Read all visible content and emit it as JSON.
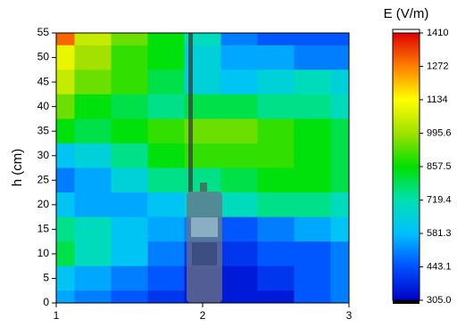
{
  "chart_data": {
    "type": "contour",
    "y_label": "h (cm)",
    "colorbar_title": "E (V/m)",
    "x": [
      1,
      1.25,
      1.5,
      1.75,
      2,
      2.25,
      2.5,
      2.75,
      3
    ],
    "y": [
      55,
      50,
      45,
      40,
      35,
      30,
      25,
      20,
      15,
      10,
      5,
      0
    ],
    "z": [
      [
        1300,
        1050,
        950,
        850,
        700,
        500,
        450,
        450,
        450
      ],
      [
        1100,
        1000,
        900,
        850,
        650,
        550,
        550,
        500,
        500
      ],
      [
        1050,
        950,
        900,
        800,
        650,
        600,
        650,
        700,
        650
      ],
      [
        950,
        850,
        800,
        750,
        800,
        800,
        750,
        750,
        700
      ],
      [
        850,
        800,
        850,
        900,
        950,
        950,
        900,
        850,
        800
      ],
      [
        600,
        650,
        750,
        850,
        900,
        900,
        900,
        850,
        800
      ],
      [
        500,
        550,
        650,
        750,
        750,
        800,
        850,
        850,
        800
      ],
      [
        600,
        550,
        550,
        600,
        650,
        700,
        750,
        750,
        700
      ],
      [
        750,
        700,
        600,
        550,
        500,
        450,
        500,
        550,
        600
      ],
      [
        800,
        700,
        600,
        500,
        400,
        400,
        450,
        450,
        500
      ],
      [
        600,
        550,
        500,
        450,
        350,
        350,
        400,
        450,
        500
      ],
      [
        550,
        500,
        450,
        400,
        350,
        350,
        350,
        450,
        500
      ]
    ],
    "xlim": [
      1,
      3
    ],
    "xticks": [
      1,
      2,
      3
    ],
    "ylim": [
      0,
      55
    ],
    "yticks": [
      0,
      5,
      10,
      15,
      20,
      25,
      30,
      35,
      40,
      45,
      50,
      55
    ],
    "clim": [
      305,
      1410
    ],
    "cticks": [
      {
        "value": 305,
        "label": "305.0"
      },
      443.1,
      581.3,
      719.4,
      857.5,
      995.6,
      1134,
      1272,
      1410
    ],
    "colormap": [
      "#0000c8",
      "#0050ff",
      "#00c0ff",
      "#00e0b0",
      "#00e000",
      "#a0e000",
      "#ffff00",
      "#ff8000",
      "#e00000"
    ]
  }
}
